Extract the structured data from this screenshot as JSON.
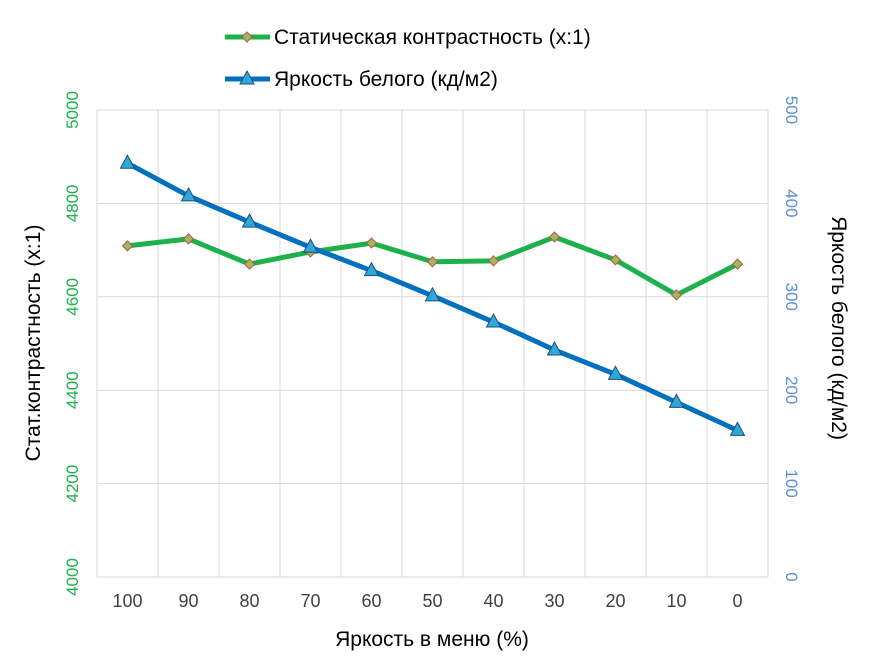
{
  "chart_data": {
    "type": "line",
    "xlabel": "Яркость в меню (%)",
    "ylabel_left": "Стат.контрастность  (x:1)",
    "ylabel_right": "Яркость белого (кд/м2)",
    "categories": [
      "100",
      "90",
      "80",
      "70",
      "60",
      "50",
      "40",
      "30",
      "20",
      "10",
      "0"
    ],
    "ylim_left": [
      4000,
      5000
    ],
    "yticks_left": [
      4000,
      4200,
      4400,
      4600,
      4800,
      5000
    ],
    "ylim_right": [
      0,
      500
    ],
    "yticks_right": [
      0,
      100,
      200,
      300,
      400,
      500
    ],
    "grid": true,
    "legend_position": "top",
    "series": [
      {
        "name": "Статическая контрастность (x:1)",
        "axis": "left",
        "marker": "diamond",
        "color": "#1DB14B",
        "marker_color": "#9BBB59",
        "values": [
          4709,
          4724,
          4670,
          4696,
          4715,
          4675,
          4677,
          4728,
          4679,
          4604,
          4670
        ]
      },
      {
        "name": "Яркость белого (кд/м2)",
        "axis": "right",
        "marker": "triangle",
        "color": "#0070C0",
        "marker_color": "#2DA8D8",
        "values": [
          443,
          408,
          380,
          353,
          328,
          301,
          273,
          243,
          217,
          187,
          157
        ]
      }
    ],
    "colors": {
      "left_axis": "#1DB14B",
      "right_axis": "#5B8FD6",
      "grid": "#D9D9D9"
    }
  }
}
